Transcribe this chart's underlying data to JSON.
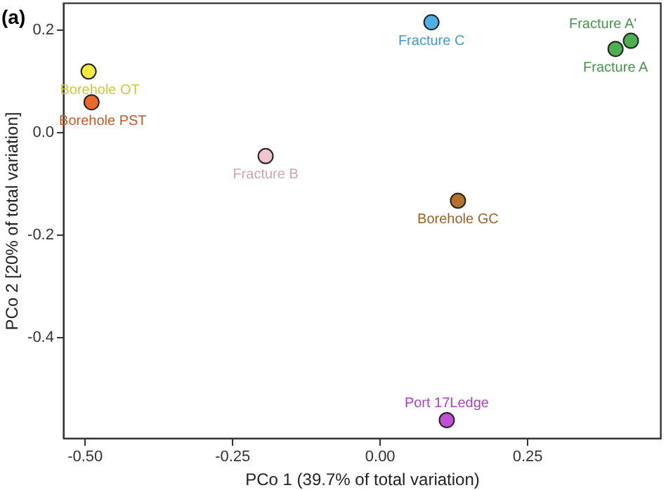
{
  "chart_data": {
    "type": "scatter",
    "title": "(a)",
    "xlabel": "PCo 1 (39.7% of total variation)",
    "ylabel": "PCo 2  [20% of total variation]",
    "xlim": [
      -0.536,
      0.476
    ],
    "xticks": [
      {
        "value": -0.5,
        "label": "-0.50"
      },
      {
        "value": -0.25,
        "label": "-0.25"
      },
      {
        "value": 0,
        "label": "0.00"
      },
      {
        "value": 0.25,
        "label": "0.25"
      }
    ],
    "ylim": [
      -0.597,
      0.252
    ],
    "yticks": [
      {
        "value": 0.2,
        "label": "0.2"
      },
      {
        "value": 0,
        "label": "0.0"
      },
      {
        "value": -0.2,
        "label": "-0.2"
      },
      {
        "value": -0.4,
        "label": "-0.4"
      }
    ],
    "grid": false,
    "marker": "circle",
    "series": [
      {
        "name": "Borehole OT",
        "color": "#f5ec3a",
        "x": [
          -0.493
        ],
        "values": [
          0.118
        ]
      },
      {
        "name": "Borehole PST",
        "color": "#e8692a",
        "x": [
          -0.488
        ],
        "values": [
          0.058
        ]
      },
      {
        "name": "Fracture B",
        "color": "#f2c4cc",
        "x": [
          -0.193
        ],
        "values": [
          -0.047
        ]
      },
      {
        "name": "Fracture C",
        "color": "#4fb0e8",
        "x": [
          0.088
        ],
        "values": [
          0.214
        ]
      },
      {
        "name": "Fracture A'",
        "color": "#4caf50",
        "x": [
          0.426
        ],
        "values": [
          0.178
        ]
      },
      {
        "name": "Fracture A",
        "color": "#4caf50",
        "x": [
          0.4
        ],
        "values": [
          0.162
        ]
      },
      {
        "name": "Borehole GC",
        "color": "#b5722a",
        "x": [
          0.133
        ],
        "values": [
          -0.134
        ]
      },
      {
        "name": "Port 17Ledge",
        "color": "#c24fd8",
        "x": [
          0.114
        ],
        "values": [
          -0.562
        ]
      }
    ]
  }
}
